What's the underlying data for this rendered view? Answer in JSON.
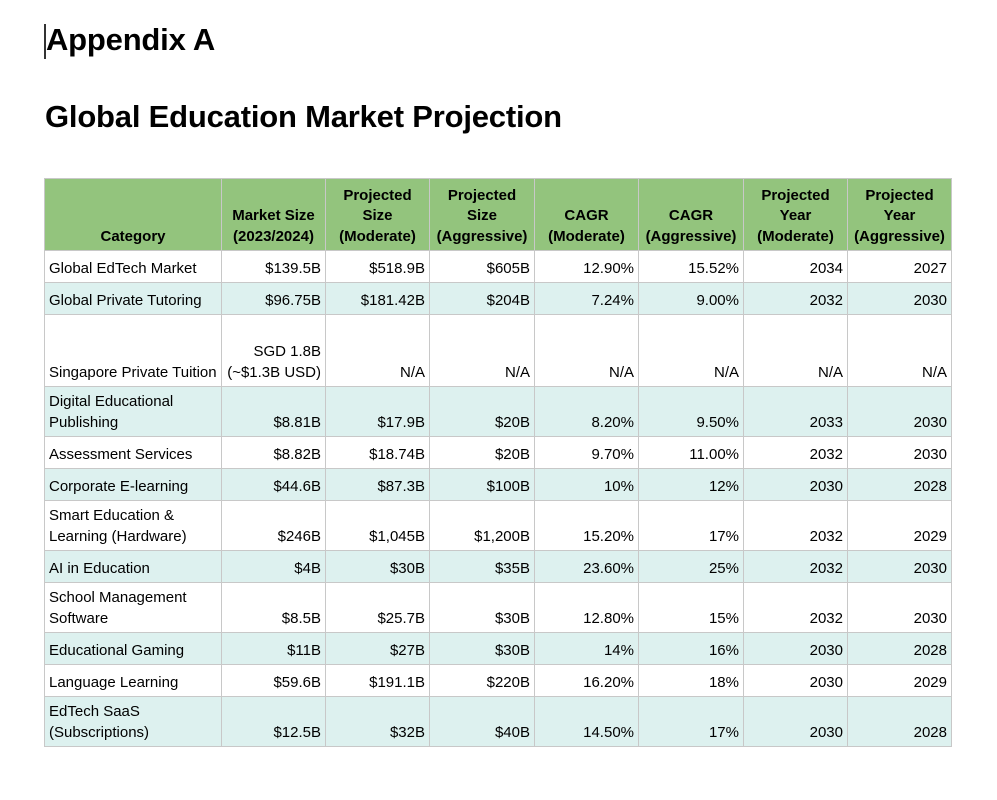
{
  "document": {
    "heading": "Appendix A",
    "title": "Global Education Market Projection"
  },
  "table": {
    "headers": [
      "Category",
      "Market Size (2023/2024)",
      "Projected Size (Moderate)",
      "Projected Size (Aggressive)",
      "CAGR (Moderate)",
      "CAGR (Aggressive)",
      "Projected Year (Moderate)",
      "Projected Year (Aggressive)"
    ],
    "rows": [
      [
        "Global EdTech Market",
        "$139.5B",
        "$518.9B",
        "$605B",
        "12.90%",
        "15.52%",
        "2034",
        "2027"
      ],
      [
        "Global Private Tutoring",
        "$96.75B",
        "$181.42B",
        "$204B",
        "7.24%",
        "9.00%",
        "2032",
        "2030"
      ],
      [
        "Singapore Private Tuition",
        "SGD 1.8B (~$1.3B USD)",
        "N/A",
        "N/A",
        "N/A",
        "N/A",
        "N/A",
        "N/A"
      ],
      [
        "Digital Educational Publishing",
        "$8.81B",
        "$17.9B",
        "$20B",
        "8.20%",
        "9.50%",
        "2033",
        "2030"
      ],
      [
        "Assessment Services",
        "$8.82B",
        "$18.74B",
        "$20B",
        "9.70%",
        "11.00%",
        "2032",
        "2030"
      ],
      [
        "Corporate E-learning",
        "$44.6B",
        "$87.3B",
        "$100B",
        "10%",
        "12%",
        "2030",
        "2028"
      ],
      [
        "Smart Education & Learning (Hardware)",
        "$246B",
        "$1,045B",
        "$1,200B",
        "15.20%",
        "17%",
        "2032",
        "2029"
      ],
      [
        "AI in Education",
        "$4B",
        "$30B",
        "$35B",
        "23.60%",
        "25%",
        "2032",
        "2030"
      ],
      [
        "School Management Software",
        "$8.5B",
        "$25.7B",
        "$30B",
        "12.80%",
        "15%",
        "2032",
        "2030"
      ],
      [
        "Educational Gaming",
        "$11B",
        "$27B",
        "$30B",
        "14%",
        "16%",
        "2030",
        "2028"
      ],
      [
        "Language Learning",
        "$59.6B",
        "$191.1B",
        "$220B",
        "16.20%",
        "18%",
        "2030",
        "2029"
      ],
      [
        "EdTech SaaS (Subscriptions)",
        "$12.5B",
        "$32B",
        "$40B",
        "14.50%",
        "17%",
        "2030",
        "2028"
      ]
    ]
  }
}
